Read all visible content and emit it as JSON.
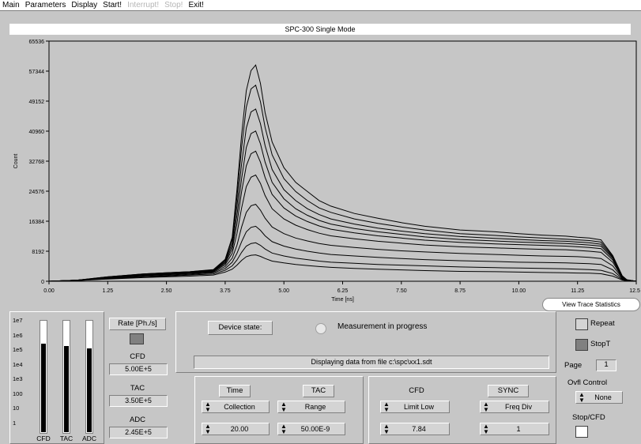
{
  "menu": {
    "items": [
      {
        "label": "Main",
        "enabled": true
      },
      {
        "label": "Parameters",
        "enabled": true
      },
      {
        "label": "Display",
        "enabled": true
      },
      {
        "label": "Start!",
        "enabled": true
      },
      {
        "label": "Interrupt!",
        "enabled": false
      },
      {
        "label": "Stop!",
        "enabled": false
      },
      {
        "label": "Exit!",
        "enabled": true
      }
    ]
  },
  "window_title": "SPC-300   Single Mode",
  "chart_data": {
    "type": "line",
    "xlabel": "Time [ns]",
    "ylabel": "Count",
    "xlim": [
      0,
      12.5
    ],
    "ylim": [
      0,
      65536
    ],
    "x_ticks": [
      "0.00",
      "1.25",
      "2.50",
      "3.75",
      "5.00",
      "6.25",
      "7.50",
      "8.75",
      "10.00",
      "11.25",
      "12.50"
    ],
    "y_ticks": [
      "0",
      "8192",
      "16384",
      "24576",
      "32768",
      "40960",
      "49152",
      "57344",
      "65536"
    ],
    "x_tick_values": [
      0,
      1.25,
      2.5,
      3.75,
      5,
      6.25,
      7.5,
      8.75,
      10,
      11.25,
      12.5
    ],
    "y_tick_values": [
      0,
      8192,
      16384,
      24576,
      32768,
      40960,
      49152,
      57344,
      65536
    ],
    "curve_x": [
      0,
      0.6,
      1.25,
      2.0,
      2.5,
      3.0,
      3.5,
      3.75,
      3.9,
      4.0,
      4.1,
      4.2,
      4.3,
      4.4,
      4.5,
      4.6,
      4.75,
      5.0,
      5.25,
      5.5,
      5.75,
      6.0,
      6.5,
      7.0,
      7.5,
      8.0,
      8.75,
      9.5,
      10.0,
      10.5,
      11.0,
      11.25,
      11.5,
      11.75,
      12.0,
      12.2,
      12.3,
      12.5
    ],
    "series": [
      {
        "peak": 59000,
        "values": [
          0,
          300,
          1200,
          2000,
          2300,
          2600,
          3200,
          6000,
          12000,
          25000,
          40000,
          52000,
          57500,
          59000,
          54000,
          46000,
          38000,
          31000,
          27000,
          24500,
          22000,
          20500,
          18500,
          17200,
          16000,
          15000,
          14000,
          13500,
          13000,
          12600,
          12300,
          12000,
          11800,
          11300,
          7000,
          1500,
          400,
          0
        ]
      },
      {
        "peak": 53500,
        "values": [
          0,
          300,
          1200,
          2000,
          2300,
          2600,
          3100,
          5800,
          11500,
          23000,
          36500,
          47500,
          52500,
          53500,
          49000,
          42000,
          34500,
          28000,
          24500,
          22000,
          20000,
          18800,
          17000,
          15800,
          14800,
          14000,
          13000,
          12500,
          12100,
          11800,
          11500,
          11300,
          11100,
          10700,
          6800,
          1400,
          400,
          0
        ]
      },
      {
        "peak": 47000,
        "values": [
          0,
          300,
          1100,
          1900,
          2200,
          2500,
          3000,
          5500,
          10500,
          20500,
          32000,
          41800,
          46200,
          47000,
          43000,
          37000,
          30500,
          25000,
          22000,
          19800,
          18200,
          17000,
          15600,
          14500,
          13700,
          13000,
          12200,
          11700,
          11400,
          11100,
          10900,
          10700,
          10500,
          10100,
          6500,
          1300,
          350,
          0
        ]
      },
      {
        "peak": 41000,
        "values": [
          0,
          300,
          1100,
          1800,
          2100,
          2400,
          2900,
          5200,
          9600,
          18000,
          28000,
          36500,
          40300,
          41000,
          37500,
          32500,
          27000,
          22500,
          19800,
          18000,
          16600,
          15600,
          14400,
          13500,
          12800,
          12100,
          11400,
          11000,
          10700,
          10500,
          10300,
          10100,
          9900,
          9600,
          6200,
          1200,
          350,
          0
        ]
      },
      {
        "peak": 35500,
        "values": [
          0,
          300,
          1000,
          1700,
          2000,
          2300,
          2800,
          4900,
          8700,
          15700,
          24500,
          31500,
          34800,
          35500,
          32500,
          28300,
          23700,
          20000,
          17800,
          16300,
          15100,
          14200,
          13200,
          12400,
          11800,
          11200,
          10600,
          10200,
          10000,
          9800,
          9600,
          9400,
          9200,
          8900,
          5800,
          1100,
          300,
          0
        ]
      },
      {
        "peak": 29000,
        "values": [
          0,
          300,
          1000,
          1600,
          1900,
          2200,
          2700,
          4500,
          7600,
          13000,
          20000,
          25800,
          28400,
          29000,
          26700,
          23400,
          19800,
          17000,
          15300,
          14100,
          13100,
          12400,
          11600,
          10900,
          10400,
          9900,
          9400,
          9100,
          8900,
          8700,
          8600,
          8400,
          8200,
          7900,
          5200,
          1000,
          300,
          0
        ]
      },
      {
        "peak": 21000,
        "values": [
          0,
          250,
          900,
          1500,
          1800,
          2100,
          2500,
          4000,
          6300,
          9800,
          14800,
          18800,
          20600,
          21000,
          19400,
          17200,
          14800,
          13000,
          11800,
          11000,
          10300,
          9800,
          9200,
          8700,
          8300,
          8000,
          7600,
          7300,
          7100,
          6900,
          6800,
          6700,
          6500,
          6200,
          4200,
          900,
          250,
          0
        ]
      },
      {
        "peak": 15000,
        "values": [
          0,
          250,
          800,
          1300,
          1600,
          1900,
          2300,
          3500,
          5200,
          7600,
          10800,
          13500,
          14700,
          15000,
          13900,
          12400,
          10800,
          9600,
          8800,
          8200,
          7700,
          7300,
          6900,
          6500,
          6200,
          5900,
          5600,
          5400,
          5200,
          5100,
          5000,
          4900,
          4800,
          4600,
          3100,
          700,
          200,
          0
        ]
      },
      {
        "peak": 10500,
        "values": [
          0,
          200,
          700,
          1200,
          1400,
          1700,
          2000,
          3000,
          4200,
          5800,
          7900,
          9600,
          10300,
          10500,
          9800,
          8800,
          7700,
          6900,
          6300,
          5900,
          5500,
          5200,
          4900,
          4600,
          4400,
          4200,
          3900,
          3700,
          3600,
          3500,
          3400,
          3300,
          3200,
          3000,
          2100,
          500,
          150,
          0
        ]
      },
      {
        "peak": 7200,
        "values": [
          0,
          200,
          600,
          1000,
          1200,
          1400,
          1700,
          2500,
          3300,
          4400,
          5700,
          6700,
          7100,
          7200,
          6800,
          6200,
          5500,
          5000,
          4600,
          4300,
          4000,
          3800,
          3500,
          3300,
          3100,
          2900,
          2700,
          2600,
          2500,
          2400,
          2300,
          2250,
          2200,
          2050,
          1400,
          350,
          100,
          0
        ]
      }
    ]
  },
  "tooltip": "View Trace Statistics",
  "bars": {
    "scale_labels": [
      "1e7",
      "1e6",
      "1e5",
      "1e4",
      "1e3",
      "100",
      "10",
      "1"
    ],
    "labels": [
      "CFD",
      "TAC",
      "ADC"
    ],
    "fill_fractions": [
      0.8,
      0.78,
      0.76
    ]
  },
  "rates": {
    "title": "Rate [Ph./s]",
    "items": [
      {
        "label": "CFD",
        "value": "5.00E+5"
      },
      {
        "label": "TAC",
        "value": "3.50E+5"
      },
      {
        "label": "ADC",
        "value": "2.45E+5"
      }
    ]
  },
  "status": {
    "device_label": "Device state:",
    "state_text": "Measurement in progress",
    "message": "Displaying data from file c:\\spc\\xx1.sdt"
  },
  "controls": {
    "time": {
      "header": "Time",
      "select": "Collection",
      "value": "20.00"
    },
    "tac": {
      "header": "TAC",
      "select": "Range",
      "value": "50.00E-9"
    },
    "cfd": {
      "header": "CFD",
      "select": "Limit Low",
      "value": "7.84"
    },
    "sync": {
      "header": "SYNC",
      "select": "Freq Div",
      "value": "1"
    }
  },
  "right_panel": {
    "repeat": "Repeat",
    "stop_t": "StopT",
    "page_label": "Page",
    "page_value": "1",
    "ovfl_label": "Ovfl Control",
    "ovfl_value": "None",
    "stop_ovfl": "Stop/CFD"
  }
}
